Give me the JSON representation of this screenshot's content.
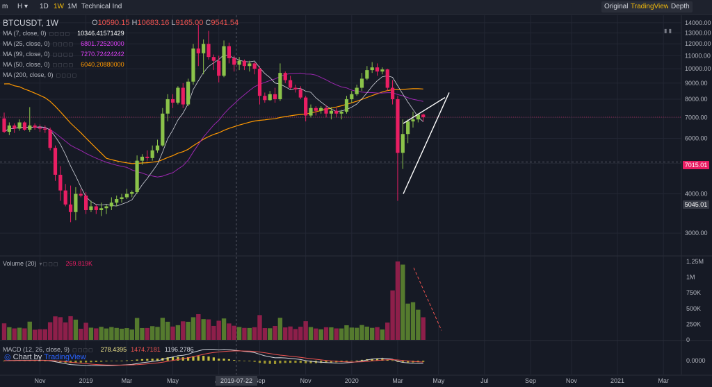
{
  "toolbar": {
    "left_items": [
      {
        "label": "m"
      },
      {
        "label": "H ▾"
      },
      {
        "label": "1D"
      },
      {
        "label": "1W",
        "active": true
      },
      {
        "label": "1M"
      },
      {
        "label": "Technical Ind"
      }
    ],
    "right_items": [
      {
        "label": "Original"
      },
      {
        "label": "TradingView",
        "active": true
      },
      {
        "label": "Depth"
      }
    ]
  },
  "header": {
    "symbol": "BTCUSDT, 1W",
    "ohlc": {
      "o": "10590.15",
      "h": "10683.16",
      "l": "9165.00",
      "c": "9541.54"
    }
  },
  "legend": [
    {
      "label": "MA (7, close, 0)",
      "value": "10346.41571429",
      "color": "#ffffff"
    },
    {
      "label": "MA (25, close, 0)",
      "value": "6801.72520000",
      "color": "#e040fb"
    },
    {
      "label": "MA (99, close, 0)",
      "value": "7270.72424242",
      "color": "#e040fb"
    },
    {
      "label": "MA (50, close, 0)",
      "value": "6040.20880000",
      "color": "#ff9800"
    },
    {
      "label": "MA (200, close, 0)",
      "value": "",
      "color": "#b2b5be"
    }
  ],
  "volume_legend": {
    "label": "Volume (20)",
    "value": "269.819K"
  },
  "macd_legend": {
    "label": "MACD (12, 26, close, 9)",
    "v1": "278.4395",
    "v2": "1474.7181",
    "v3": "1196.2786"
  },
  "branding": {
    "prefix": "Chart by ",
    "name": "TradingView"
  },
  "price_tags": {
    "current": "7015.01",
    "crosshair": "5045.01"
  },
  "crosshair_date": "2019-07-22",
  "colors": {
    "up": "#8bc34a",
    "down": "#e91e63",
    "bg": "#161a25",
    "ma7": "#d1d4dc",
    "ma25": "#9c27b0",
    "ma50": "#ff9800",
    "accent": "#f0b90b"
  },
  "chart_data": {
    "type": "candlestick",
    "title": "BTCUSDT, 1W",
    "price_axis": {
      "min": 3000,
      "max": 14000,
      "ticks": [
        3000,
        4000,
        5000,
        6000,
        7000,
        8000,
        9000,
        10000,
        11000,
        12000,
        13000,
        14000
      ],
      "tick_labels": [
        "3000.00",
        "4000.00",
        "5000.00",
        "6000.00",
        "7000.00",
        "8000.00",
        "9000.00",
        "10000.00",
        "11000.00",
        "12000.00",
        "13000.00",
        "14000.00"
      ]
    },
    "time_axis": {
      "tick_labels": [
        "Sep",
        "Nov",
        "2019",
        "Mar",
        "May",
        "Jul",
        "Sep",
        "Nov",
        "2020",
        "Mar",
        "May",
        "Jul",
        "Sep",
        "Nov",
        "2021",
        "Mar"
      ],
      "tick_week_index": [
        -2,
        7,
        16,
        24,
        33,
        42,
        50,
        59,
        68,
        77,
        85,
        94,
        103,
        111,
        120,
        129
      ]
    },
    "candles": [
      {
        "o": 6950,
        "h": 7250,
        "l": 6250,
        "c": 6300
      },
      {
        "o": 6300,
        "h": 6750,
        "l": 6150,
        "c": 6600
      },
      {
        "o": 6600,
        "h": 6700,
        "l": 6250,
        "c": 6450
      },
      {
        "o": 6450,
        "h": 6900,
        "l": 6350,
        "c": 6750
      },
      {
        "o": 6750,
        "h": 6800,
        "l": 6350,
        "c": 6400
      },
      {
        "o": 6400,
        "h": 7550,
        "l": 6300,
        "c": 6600
      },
      {
        "o": 6600,
        "h": 6700,
        "l": 6400,
        "c": 6500
      },
      {
        "o": 6500,
        "h": 6650,
        "l": 6300,
        "c": 6450
      },
      {
        "o": 6450,
        "h": 6600,
        "l": 6250,
        "c": 6400
      },
      {
        "o": 6400,
        "h": 6500,
        "l": 5500,
        "c": 5600
      },
      {
        "o": 5600,
        "h": 5700,
        "l": 4400,
        "c": 4600
      },
      {
        "o": 4600,
        "h": 4900,
        "l": 3800,
        "c": 4100
      },
      {
        "o": 4100,
        "h": 4300,
        "l": 3650,
        "c": 3700
      },
      {
        "o": 3700,
        "h": 4250,
        "l": 3250,
        "c": 3500
      },
      {
        "o": 3500,
        "h": 4200,
        "l": 3300,
        "c": 4000
      },
      {
        "o": 4000,
        "h": 4150,
        "l": 3900,
        "c": 3950
      },
      {
        "o": 3950,
        "h": 4050,
        "l": 3450,
        "c": 3550
      },
      {
        "o": 3550,
        "h": 3800,
        "l": 3500,
        "c": 3650
      },
      {
        "o": 3650,
        "h": 3700,
        "l": 3450,
        "c": 3550
      },
      {
        "o": 3550,
        "h": 3750,
        "l": 3400,
        "c": 3600
      },
      {
        "o": 3600,
        "h": 3700,
        "l": 3450,
        "c": 3650
      },
      {
        "o": 3650,
        "h": 3900,
        "l": 3550,
        "c": 3750
      },
      {
        "o": 3750,
        "h": 3950,
        "l": 3650,
        "c": 3850
      },
      {
        "o": 3850,
        "h": 4000,
        "l": 3750,
        "c": 3900
      },
      {
        "o": 3900,
        "h": 4150,
        "l": 3850,
        "c": 4000
      },
      {
        "o": 4000,
        "h": 4100,
        "l": 3900,
        "c": 4050
      },
      {
        "o": 4050,
        "h": 5300,
        "l": 4000,
        "c": 5100
      },
      {
        "o": 5100,
        "h": 5350,
        "l": 4950,
        "c": 5250
      },
      {
        "o": 5250,
        "h": 5500,
        "l": 5100,
        "c": 5200
      },
      {
        "o": 5200,
        "h": 5700,
        "l": 5100,
        "c": 5500
      },
      {
        "o": 5500,
        "h": 5950,
        "l": 5400,
        "c": 5700
      },
      {
        "o": 5700,
        "h": 7500,
        "l": 5650,
        "c": 7200
      },
      {
        "o": 7200,
        "h": 8300,
        "l": 6800,
        "c": 8000
      },
      {
        "o": 8000,
        "h": 8300,
        "l": 7500,
        "c": 7800
      },
      {
        "o": 7800,
        "h": 8800,
        "l": 7700,
        "c": 8700
      },
      {
        "o": 8700,
        "h": 9000,
        "l": 7500,
        "c": 7700
      },
      {
        "o": 7700,
        "h": 9300,
        "l": 7600,
        "c": 9100
      },
      {
        "o": 9100,
        "h": 12000,
        "l": 8900,
        "c": 11600
      },
      {
        "o": 11600,
        "h": 13800,
        "l": 10200,
        "c": 11200
      },
      {
        "o": 11200,
        "h": 12400,
        "l": 9600,
        "c": 12000
      },
      {
        "o": 12000,
        "h": 13200,
        "l": 10700,
        "c": 10900
      },
      {
        "o": 10900,
        "h": 11100,
        "l": 9900,
        "c": 10600
      },
      {
        "o": 10600,
        "h": 11000,
        "l": 9050,
        "c": 9500
      },
      {
        "o": 9500,
        "h": 12300,
        "l": 9400,
        "c": 11800
      },
      {
        "o": 11800,
        "h": 12100,
        "l": 10400,
        "c": 10800
      },
      {
        "o": 10800,
        "h": 11000,
        "l": 9800,
        "c": 10300
      },
      {
        "o": 10300,
        "h": 10900,
        "l": 9900,
        "c": 10600
      },
      {
        "o": 10600,
        "h": 10700,
        "l": 9900,
        "c": 10200
      },
      {
        "o": 10200,
        "h": 10600,
        "l": 9800,
        "c": 10400
      },
      {
        "o": 10400,
        "h": 10500,
        "l": 9600,
        "c": 10000
      },
      {
        "o": 10000,
        "h": 10200,
        "l": 7700,
        "c": 8200
      },
      {
        "o": 8200,
        "h": 8400,
        "l": 7800,
        "c": 7950
      },
      {
        "o": 7950,
        "h": 8500,
        "l": 7900,
        "c": 8300
      },
      {
        "o": 8300,
        "h": 8700,
        "l": 7800,
        "c": 8000
      },
      {
        "o": 8000,
        "h": 10400,
        "l": 7900,
        "c": 9700
      },
      {
        "o": 9700,
        "h": 9800,
        "l": 9000,
        "c": 9200
      },
      {
        "o": 9200,
        "h": 9500,
        "l": 8600,
        "c": 8700
      },
      {
        "o": 8700,
        "h": 8900,
        "l": 8400,
        "c": 8600
      },
      {
        "o": 8600,
        "h": 8800,
        "l": 8000,
        "c": 8100
      },
      {
        "o": 8100,
        "h": 8200,
        "l": 6800,
        "c": 7100
      },
      {
        "o": 7100,
        "h": 7700,
        "l": 7000,
        "c": 7500
      },
      {
        "o": 7500,
        "h": 7600,
        "l": 7100,
        "c": 7350
      },
      {
        "o": 7350,
        "h": 7600,
        "l": 7200,
        "c": 7500
      },
      {
        "o": 7500,
        "h": 7650,
        "l": 7000,
        "c": 7200
      },
      {
        "o": 7200,
        "h": 7550,
        "l": 6900,
        "c": 7350
      },
      {
        "o": 7350,
        "h": 7500,
        "l": 7000,
        "c": 7200
      },
      {
        "o": 7200,
        "h": 7400,
        "l": 6900,
        "c": 7300
      },
      {
        "o": 7300,
        "h": 8200,
        "l": 7200,
        "c": 8000
      },
      {
        "o": 8000,
        "h": 8500,
        "l": 7800,
        "c": 8300
      },
      {
        "o": 8300,
        "h": 8900,
        "l": 8200,
        "c": 8700
      },
      {
        "o": 8700,
        "h": 9700,
        "l": 8500,
        "c": 9300
      },
      {
        "o": 9300,
        "h": 10200,
        "l": 9200,
        "c": 9900
      },
      {
        "o": 9900,
        "h": 10500,
        "l": 9700,
        "c": 10100
      },
      {
        "o": 10100,
        "h": 10400,
        "l": 9500,
        "c": 9800
      },
      {
        "o": 9800,
        "h": 10100,
        "l": 9600,
        "c": 9950
      },
      {
        "o": 9950,
        "h": 10000,
        "l": 8500,
        "c": 8700
      },
      {
        "o": 8700,
        "h": 9200,
        "l": 7700,
        "c": 8000
      },
      {
        "o": 8000,
        "h": 8200,
        "l": 3800,
        "c": 5400
      },
      {
        "o": 5400,
        "h": 6900,
        "l": 4800,
        "c": 6200
      },
      {
        "o": 6200,
        "h": 6900,
        "l": 5800,
        "c": 6800
      },
      {
        "o": 6800,
        "h": 7300,
        "l": 6500,
        "c": 6900
      },
      {
        "o": 6900,
        "h": 7200,
        "l": 6750,
        "c": 7150
      },
      {
        "o": 7150,
        "h": 7200,
        "l": 6800,
        "c": 7015
      }
    ],
    "volume": {
      "axis_max": 1250000,
      "tick_labels": [
        "0",
        "250K",
        "500K",
        "750K",
        "1M",
        "1.25M"
      ],
      "ticks": [
        0,
        250000,
        500000,
        750000,
        1000000,
        1250000
      ]
    },
    "macd_axis": {
      "tick_labels": [
        "0.0000"
      ]
    },
    "annotations": [
      "rising wedge trendlines",
      "dashed red volume downtrend line"
    ]
  }
}
